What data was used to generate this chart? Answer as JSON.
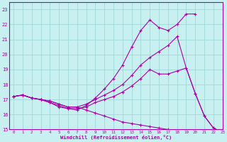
{
  "xlabel": "Windchill (Refroidissement éolien,°C)",
  "xlim": [
    -0.5,
    23
  ],
  "ylim": [
    15,
    23.5
  ],
  "xticks": [
    0,
    1,
    2,
    3,
    4,
    5,
    6,
    7,
    8,
    9,
    10,
    11,
    12,
    13,
    14,
    15,
    16,
    17,
    18,
    19,
    20,
    21,
    22,
    23
  ],
  "yticks": [
    15,
    16,
    17,
    18,
    19,
    20,
    21,
    22,
    23
  ],
  "bg_color": "#c8f0f0",
  "line_color": "#aa00aa",
  "grid_color": "#a0d8d8",
  "lines": [
    {
      "x": [
        0,
        1,
        2,
        3,
        4,
        5,
        6,
        7,
        8,
        9,
        10,
        11,
        12,
        13,
        14,
        15,
        16,
        17,
        18,
        19,
        20
      ],
      "y": [
        17.2,
        17.3,
        17.1,
        17.0,
        16.8,
        16.5,
        16.4,
        16.3,
        16.6,
        17.1,
        17.7,
        18.4,
        19.3,
        20.5,
        21.6,
        22.3,
        21.8,
        21.6,
        22.0,
        22.7,
        22.7
      ]
    },
    {
      "x": [
        0,
        1,
        2,
        3,
        4,
        5,
        6,
        7,
        8,
        9,
        10,
        11,
        12,
        13,
        14,
        15,
        16,
        17,
        18,
        19,
        20,
        21,
        22,
        23
      ],
      "y": [
        17.2,
        17.3,
        17.1,
        17.0,
        16.9,
        16.7,
        16.5,
        16.5,
        16.7,
        17.0,
        17.3,
        17.6,
        18.0,
        18.6,
        19.3,
        19.8,
        20.2,
        20.6,
        21.2,
        19.1,
        17.4,
        15.9,
        15.1,
        14.8
      ]
    },
    {
      "x": [
        0,
        1,
        2,
        3,
        4,
        5,
        6,
        7,
        8,
        9,
        10,
        11,
        12,
        13,
        14,
        15,
        16,
        17,
        18,
        19,
        20,
        21,
        22,
        23
      ],
      "y": [
        17.2,
        17.3,
        17.1,
        17.0,
        16.8,
        16.6,
        16.4,
        16.4,
        16.5,
        16.8,
        17.0,
        17.2,
        17.5,
        17.9,
        18.4,
        19.0,
        18.7,
        18.7,
        18.9,
        19.1,
        17.4,
        15.9,
        15.1,
        14.8
      ]
    },
    {
      "x": [
        0,
        1,
        2,
        3,
        4,
        5,
        6,
        7,
        8,
        9,
        10,
        11,
        12,
        13,
        14,
        15,
        16,
        17,
        18,
        19,
        20,
        21,
        22,
        23
      ],
      "y": [
        17.2,
        17.3,
        17.1,
        17.0,
        16.9,
        16.7,
        16.5,
        16.5,
        16.3,
        16.1,
        15.9,
        15.7,
        15.5,
        15.4,
        15.3,
        15.2,
        15.1,
        15.0,
        14.9,
        14.9,
        14.9,
        14.9,
        14.9,
        14.8
      ]
    }
  ]
}
